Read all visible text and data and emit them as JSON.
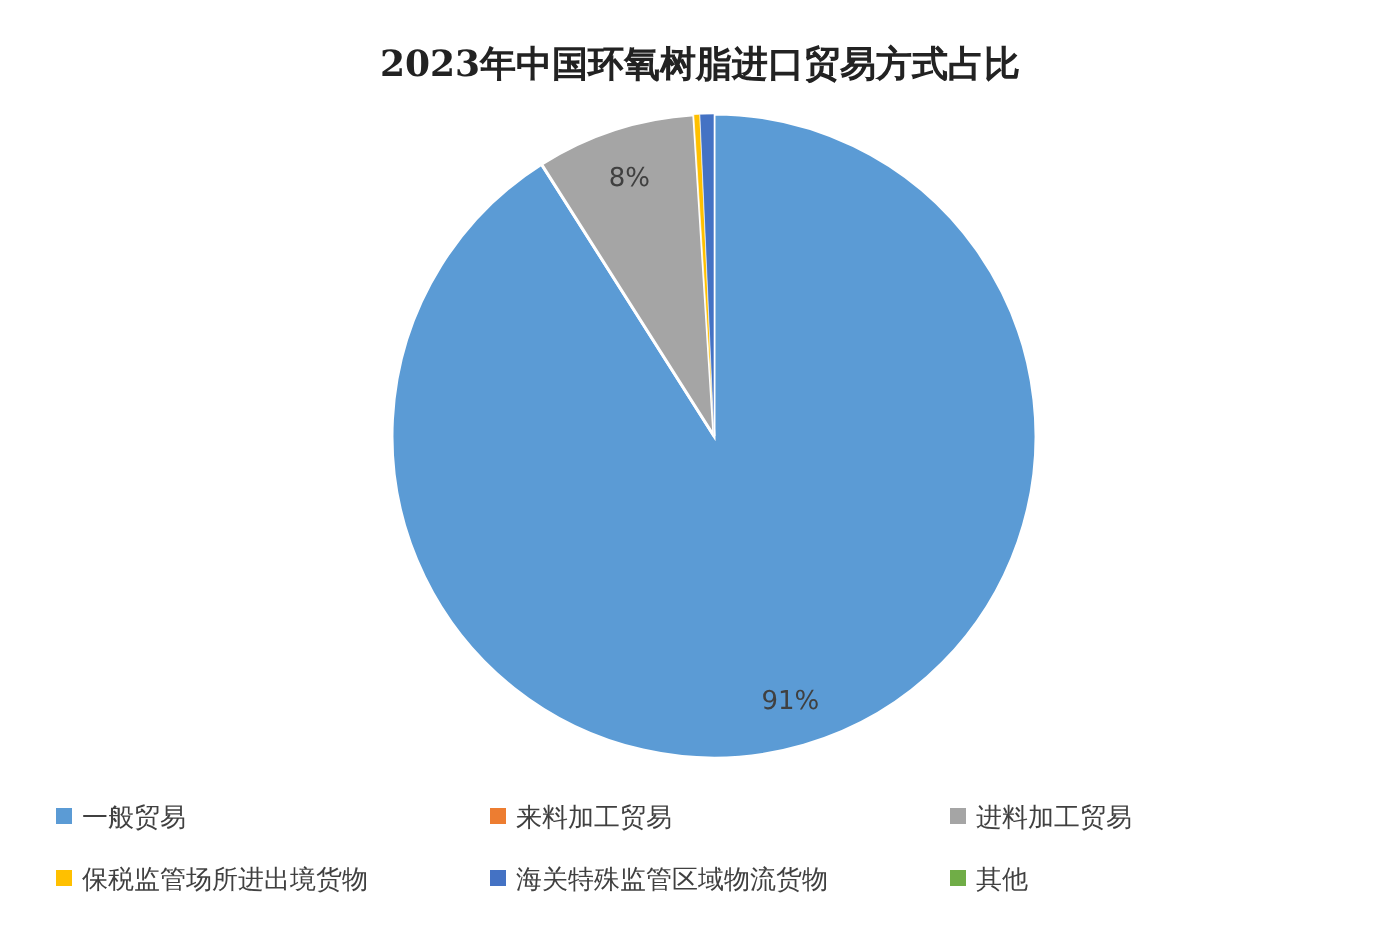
{
  "chart_data": {
    "type": "pie",
    "title": "2023年中国环氧树脂进口贸易方式占比",
    "categories": [
      "一般贸易",
      "来料加工贸易",
      "进料加工贸易",
      "保税监管场所进出境货物",
      "海关特殊监管区域物流货物",
      "其他"
    ],
    "values": [
      91,
      0,
      8,
      0.3,
      0.7,
      0
    ],
    "colors": [
      "#5b9bd5",
      "#ed7d31",
      "#a5a5a5",
      "#ffc000",
      "#4472c4",
      "#70ad47"
    ],
    "value_labels": [
      "91%",
      null,
      "8%",
      null,
      null,
      null
    ],
    "legend": "bottom"
  }
}
